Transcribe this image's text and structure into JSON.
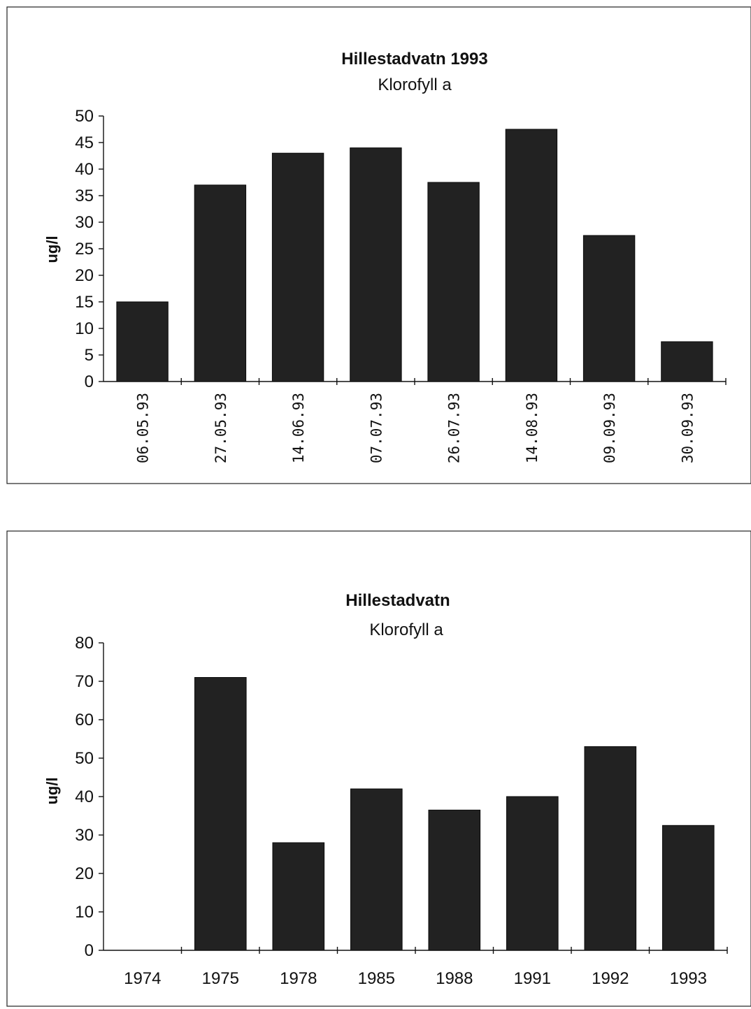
{
  "chart_data": [
    {
      "type": "bar",
      "title": "Hillestadvatn 1993",
      "subtitle": "Klorofyll a",
      "xlabel": "",
      "ylabel": "ug/l",
      "ylim": [
        0,
        50
      ],
      "yticks": [
        "0",
        "5",
        "10",
        "15",
        "20",
        "25",
        "30",
        "35",
        "40",
        "45",
        "50"
      ],
      "categories": [
        "06.05.93",
        "27.05.93",
        "14.06.93",
        "07.07.93",
        "26.07.93",
        "14.08.93",
        "09.09.93",
        "30.09.93"
      ],
      "values": [
        15,
        37,
        43,
        44,
        37.5,
        47.5,
        27.5,
        7.5
      ],
      "x_tick_rotation": "vertical",
      "bar_color": "#222222",
      "grid": false,
      "legend": "none"
    },
    {
      "type": "bar",
      "title": "Hillestadvatn",
      "subtitle": "Klorofyll a",
      "xlabel": "",
      "ylabel": "ug/l",
      "ylim": [
        0,
        80
      ],
      "yticks": [
        "0",
        "10",
        "20",
        "30",
        "40",
        "50",
        "60",
        "70",
        "80"
      ],
      "categories": [
        "1974",
        "1975",
        "1978",
        "1985",
        "1988",
        "1991",
        "1992",
        "1993"
      ],
      "values": [
        0,
        71,
        28,
        42,
        36.5,
        40,
        53,
        32.5
      ],
      "x_tick_rotation": "horizontal",
      "bar_color": "#222222",
      "grid": false,
      "legend": "none"
    }
  ]
}
